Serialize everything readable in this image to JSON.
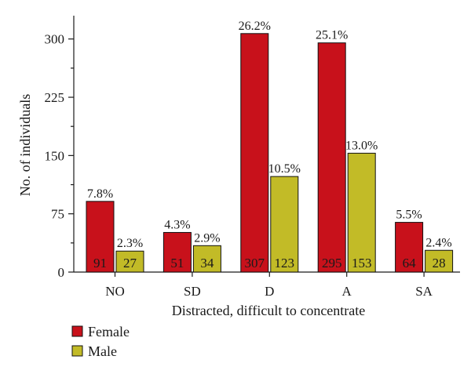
{
  "chart_data": {
    "type": "bar",
    "title": "",
    "xlabel": "Distracted, difficult to concentrate",
    "ylabel": "No. of individuals",
    "categories": [
      "NO",
      "SD",
      "D",
      "A",
      "SA"
    ],
    "ylim": [
      0,
      330
    ],
    "yticks": [
      0,
      75,
      150,
      225,
      300
    ],
    "grid": false,
    "legend_position": "bottom-left",
    "series": [
      {
        "name": "Female",
        "color": "#c8111b",
        "values": [
          91,
          51,
          307,
          295,
          64
        ],
        "percent_labels": [
          "7.8%",
          "4.3%",
          "26.2%",
          "25.1%",
          "5.5%"
        ]
      },
      {
        "name": "Male",
        "color": "#c2bb27",
        "values": [
          27,
          34,
          123,
          153,
          28
        ],
        "percent_labels": [
          "2.3%",
          "2.9%",
          "10.5%",
          "13.0%",
          "2.4%"
        ]
      }
    ]
  }
}
